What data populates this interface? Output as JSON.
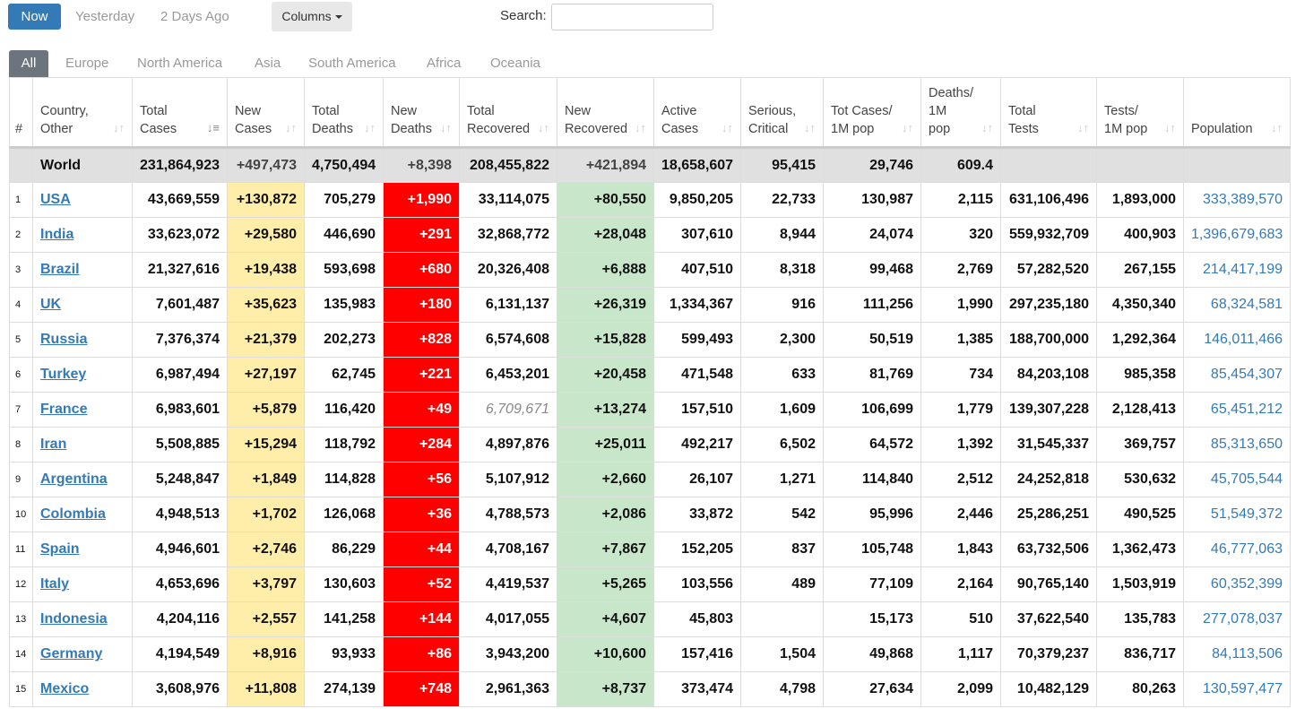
{
  "topbar": {
    "now_label": "Now",
    "yesterday_label": "Yesterday",
    "two_days_label": "2 Days Ago",
    "columns_label": "Columns",
    "search_label": "Search:",
    "search_value": ""
  },
  "tabs": [
    "All",
    "Europe",
    "North America",
    "Asia",
    "South America",
    "Africa",
    "Oceania"
  ],
  "headers": [
    "#",
    "Country,\nOther",
    "Total\nCases",
    "New\nCases",
    "Total\nDeaths",
    "New\nDeaths",
    "Total\nRecovered",
    "New\nRecovered",
    "Active\nCases",
    "Serious,\nCritical",
    "Tot Cases/\n1M pop",
    "Deaths/\n1M\npop",
    "Total\nTests",
    "Tests/\n1M pop",
    "Population"
  ],
  "world": [
    "",
    "World",
    "231,864,923",
    "+497,473",
    "4,750,494",
    "+8,398",
    "208,455,822",
    "+421,894",
    "18,658,607",
    "95,415",
    "29,746",
    "609.4",
    "",
    "",
    ""
  ],
  "rows": [
    [
      "1",
      "USA",
      "43,669,559",
      "+130,872",
      "705,279",
      "+1,990",
      "33,114,075",
      "+80,550",
      "9,850,205",
      "22,733",
      "130,987",
      "2,115",
      "631,106,496",
      "1,893,000",
      "333,389,570"
    ],
    [
      "2",
      "India",
      "33,623,072",
      "+29,580",
      "446,690",
      "+291",
      "32,868,772",
      "+28,048",
      "307,610",
      "8,944",
      "24,074",
      "320",
      "559,932,709",
      "400,903",
      "1,396,679,683"
    ],
    [
      "3",
      "Brazil",
      "21,327,616",
      "+19,438",
      "593,698",
      "+680",
      "20,326,408",
      "+6,888",
      "407,510",
      "8,318",
      "99,468",
      "2,769",
      "57,282,520",
      "267,155",
      "214,417,199"
    ],
    [
      "4",
      "UK",
      "7,601,487",
      "+35,623",
      "135,983",
      "+180",
      "6,131,137",
      "+26,319",
      "1,334,367",
      "916",
      "111,256",
      "1,990",
      "297,235,180",
      "4,350,340",
      "68,324,581"
    ],
    [
      "5",
      "Russia",
      "7,376,374",
      "+21,379",
      "202,273",
      "+828",
      "6,574,608",
      "+15,828",
      "599,493",
      "2,300",
      "50,519",
      "1,385",
      "188,700,000",
      "1,292,364",
      "146,011,466"
    ],
    [
      "6",
      "Turkey",
      "6,987,494",
      "+27,197",
      "62,745",
      "+221",
      "6,453,201",
      "+20,458",
      "471,548",
      "633",
      "81,769",
      "734",
      "84,203,108",
      "985,358",
      "85,454,307"
    ],
    [
      "7",
      "France",
      "6,983,601",
      "+5,879",
      "116,420",
      "+49",
      "6,709,671",
      "+13,274",
      "157,510",
      "1,609",
      "106,699",
      "1,779",
      "139,307,228",
      "2,128,413",
      "65,451,212"
    ],
    [
      "8",
      "Iran",
      "5,508,885",
      "+15,294",
      "118,792",
      "+284",
      "4,897,876",
      "+25,011",
      "492,217",
      "6,502",
      "64,572",
      "1,392",
      "31,545,337",
      "369,757",
      "85,313,650"
    ],
    [
      "9",
      "Argentina",
      "5,248,847",
      "+1,849",
      "114,828",
      "+56",
      "5,107,912",
      "+2,660",
      "26,107",
      "1,271",
      "114,840",
      "2,512",
      "24,252,818",
      "530,632",
      "45,705,544"
    ],
    [
      "10",
      "Colombia",
      "4,948,513",
      "+1,702",
      "126,068",
      "+36",
      "4,788,573",
      "+2,086",
      "33,872",
      "542",
      "95,996",
      "2,446",
      "25,286,251",
      "490,525",
      "51,549,372"
    ],
    [
      "11",
      "Spain",
      "4,946,601",
      "+2,746",
      "86,229",
      "+44",
      "4,708,167",
      "+7,867",
      "152,205",
      "837",
      "105,748",
      "1,843",
      "63,732,506",
      "1,362,473",
      "46,777,063"
    ],
    [
      "12",
      "Italy",
      "4,653,696",
      "+3,797",
      "130,603",
      "+52",
      "4,419,537",
      "+5,265",
      "103,556",
      "489",
      "77,109",
      "2,164",
      "90,765,140",
      "1,503,919",
      "60,352,399"
    ],
    [
      "13",
      "Indonesia",
      "4,204,116",
      "+2,557",
      "141,258",
      "+144",
      "4,017,055",
      "+4,607",
      "45,803",
      "",
      "15,173",
      "510",
      "37,622,540",
      "135,783",
      "277,078,037"
    ],
    [
      "14",
      "Germany",
      "4,194,549",
      "+8,916",
      "93,933",
      "+86",
      "3,943,200",
      "+10,600",
      "157,416",
      "1,504",
      "49,868",
      "1,117",
      "70,379,237",
      "836,717",
      "84,113,506"
    ],
    [
      "15",
      "Mexico",
      "3,608,976",
      "+11,808",
      "274,139",
      "+748",
      "2,961,363",
      "+8,737",
      "373,474",
      "4,798",
      "27,634",
      "2,099",
      "10,482,129",
      "80,263",
      "130,597,477"
    ]
  ],
  "colors": {
    "accent": "#337ab7",
    "new_cases_bg": "#ffeeaa",
    "new_deaths_bg": "#ff0000",
    "new_recovered_bg": "#c8e6c9",
    "world_row_bg": "#e0e0e0"
  },
  "icons": {
    "sort": "sort-arrows-icon",
    "sort_active": "sort-desc-icon",
    "caret": "caret-down-icon"
  }
}
